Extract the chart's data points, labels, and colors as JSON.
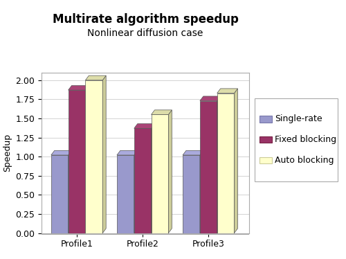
{
  "title": "Multirate algorithm speedup",
  "subtitle": "Nonlinear diffusion case",
  "ylabel": "Speedup",
  "categories": [
    "Profile1",
    "Profile2",
    "Profile3"
  ],
  "series": {
    "Single-rate": [
      1.02,
      1.02,
      1.02
    ],
    "Fixed blocking": [
      1.87,
      1.37,
      1.73
    ],
    "Auto blocking": [
      2.0,
      1.55,
      1.83
    ]
  },
  "colors": {
    "Single-rate": "#9999cc",
    "Fixed blocking": "#993366",
    "Auto blocking": "#ffffcc"
  },
  "side_colors": {
    "Single-rate": "#7777aa",
    "Fixed blocking": "#772244",
    "Auto blocking": "#cccc99"
  },
  "top_colors": {
    "Single-rate": "#aaaadd",
    "Fixed blocking": "#aa4477",
    "Auto blocking": "#ddddaa"
  },
  "ylim": [
    0.0,
    2.1
  ],
  "yticks": [
    0.0,
    0.25,
    0.5,
    0.75,
    1.0,
    1.25,
    1.5,
    1.75,
    2.0
  ],
  "bar_width": 0.18,
  "depth": 0.06,
  "background_color": "#ffffff",
  "title_fontsize": 12,
  "subtitle_fontsize": 10,
  "tick_fontsize": 9,
  "label_fontsize": 9,
  "legend_fontsize": 9
}
